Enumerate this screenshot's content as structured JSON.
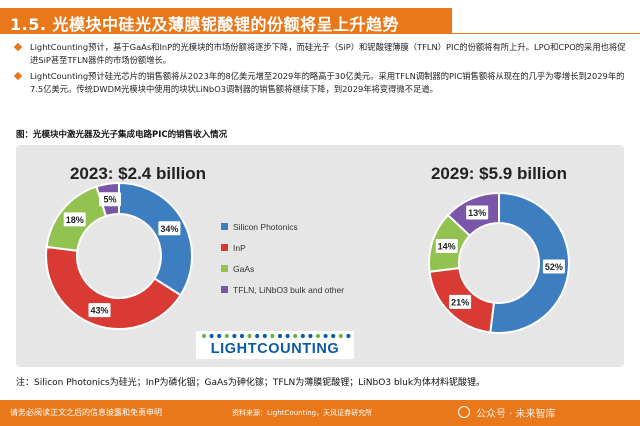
{
  "title": "1.5. 光模块中硅光及薄膜铌酸锂的份额将呈上升趋势",
  "bullets": [
    "LightCounting预计，基于GaAs和InP的光模块的市场份额将逐步下降，而硅光子（SiP）和铌酸锂薄膜（TFLN）PIC的份额将有所上升。LPO和CPO的采用也将促进SiP甚至TFLN器件的市场份额增长。",
    "LightCounting预计硅光芯片的销售额将从2023年的8亿美元增至2029年的略高于30亿美元。采用TFLN调制器的PIC销售额将从现在的几乎为零增长到2029年的7.5亿美元。传统DWDM光模块中使用的块状LiNbO3调制器的销售额将继续下降，到2029年将变得微不足道。"
  ],
  "figure_caption": "图：光模块中激光器及光子集成电路PIC的销售收入情况",
  "chart_data": [
    {
      "type": "pie",
      "title": "2023: $2.4 billion",
      "categories": [
        "Silicon Photonics",
        "InP",
        "GaAs",
        "TFLN, LiNbO3 bulk and other"
      ],
      "values": [
        34,
        43,
        18,
        5
      ]
    },
    {
      "type": "pie",
      "title": "2029: $5.9 billion",
      "categories": [
        "Silicon Photonics",
        "InP",
        "GaAs",
        "TFLN, LiNbO3 bulk and other"
      ],
      "values": [
        52,
        21,
        14,
        13
      ]
    }
  ],
  "legend": [
    "Silicon Photonics",
    "InP",
    "GaAs",
    "TFLN, LiNbO3 bulk and other"
  ],
  "series_colors": [
    "#3d7ec1",
    "#d93a34",
    "#92c24f",
    "#7a56a8"
  ],
  "logo_text": "LIGHTCOUNTING",
  "note": "注：Silicon Photonics为硅光；InP为磷化铟；GaAs为砷化镓；TFLN为薄膜铌酸锂；LiNbO3 bluk为体材料铌酸锂。",
  "footer": {
    "disclaimer": "请务必阅读正文之后的信息披露和免责申明",
    "source": "资料来源：LightCounting，天风证券研究所",
    "watermark": "公众号 · 未来智库"
  }
}
